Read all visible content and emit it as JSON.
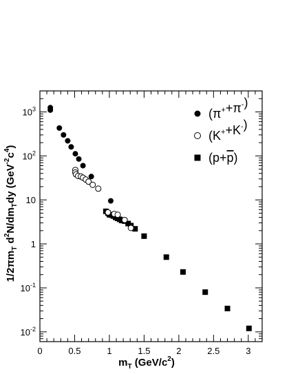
{
  "chart_data": {
    "type": "scatter",
    "title": "",
    "xlabel": "m_T (GeV/c^2)",
    "ylabel": "1/2πm_T d^2N/dm_T dy (GeV^-2c^4)",
    "x_scale": "linear",
    "y_scale": "log",
    "xlim": [
      0,
      3.2
    ],
    "ylim": [
      0.006,
      3000
    ],
    "x_ticks": [
      0,
      0.5,
      1,
      1.5,
      2,
      2.5,
      3
    ],
    "y_ticks": [
      {
        "value": 0.01,
        "base": "10",
        "exp": "-2"
      },
      {
        "value": 0.1,
        "base": "10",
        "exp": "-1"
      },
      {
        "value": 1,
        "base": "1",
        "exp": ""
      },
      {
        "value": 10,
        "base": "10",
        "exp": ""
      },
      {
        "value": 100,
        "base": "10",
        "exp": "2"
      },
      {
        "value": 1000,
        "base": "10",
        "exp": "3"
      }
    ],
    "grid": false,
    "legend_position": "top-right",
    "series": [
      {
        "name": "(π+ + π-)",
        "legend_parts": [
          {
            "t": "(π",
            "s": ""
          },
          {
            "t": "+",
            "s": "sup"
          },
          {
            "t": "+π",
            "s": ""
          },
          {
            "t": "-",
            "s": "sup"
          },
          {
            "t": ")",
            "s": ""
          }
        ],
        "marker": "filled-circle",
        "x": [
          0.15,
          0.15,
          0.28,
          0.34,
          0.4,
          0.45,
          0.51,
          0.56,
          0.62,
          0.74,
          1.02
        ],
        "y": [
          1250,
          1100,
          430,
          300,
          220,
          160,
          112,
          85,
          60,
          34,
          9.5
        ]
      },
      {
        "name": "(K+ + K-)",
        "legend_parts": [
          {
            "t": "(K",
            "s": ""
          },
          {
            "t": "+",
            "s": "sup"
          },
          {
            "t": "+K",
            "s": ""
          },
          {
            "t": "-",
            "s": "sup"
          },
          {
            "t": ")",
            "s": ""
          }
        ],
        "marker": "open-circle",
        "x": [
          0.51,
          0.51,
          0.52,
          0.55,
          0.59,
          0.62,
          0.66,
          0.7,
          0.76,
          0.84,
          0.98,
          1.07,
          1.12,
          1.22,
          1.31
        ],
        "y": [
          48,
          42,
          38,
          35,
          34,
          32,
          29,
          26,
          22,
          18,
          5.2,
          4.8,
          4.6,
          3.5,
          2.3
        ]
      },
      {
        "name": "(p + p̄)",
        "legend_parts": [
          {
            "t": "(p+",
            "s": ""
          },
          {
            "t": "p",
            "s": "bar"
          },
          {
            "t": ")",
            "s": ""
          }
        ],
        "marker": "filled-square",
        "x": [
          0.95,
          0.98,
          1.0,
          1.03,
          1.06,
          1.09,
          1.12,
          1.15,
          1.18,
          1.22,
          1.27,
          1.31,
          1.37,
          1.5,
          1.82,
          2.06,
          2.38,
          2.7,
          3.01
        ],
        "y": [
          5.5,
          5.0,
          4.6,
          4.5,
          4.3,
          4.0,
          3.8,
          3.6,
          3.4,
          3.3,
          2.9,
          2.6,
          2.2,
          1.5,
          0.5,
          0.23,
          0.08,
          0.034,
          0.012
        ]
      }
    ]
  }
}
